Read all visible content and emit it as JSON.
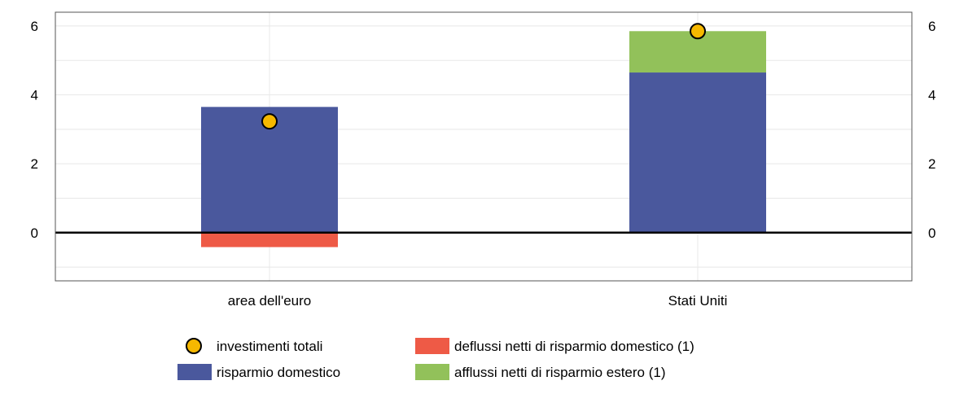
{
  "chart_data": {
    "type": "bar",
    "stacked": true,
    "categories": [
      "area dell'euro",
      "Stati Uniti"
    ],
    "series": [
      {
        "name": "risparmio domestico",
        "kind": "bar",
        "color": "#4a589d",
        "values": [
          3.65,
          4.65
        ]
      },
      {
        "name": "deflussi netti di risparmio domestico (1)",
        "kind": "bar",
        "color": "#ee5a46",
        "values": [
          -0.42,
          0
        ]
      },
      {
        "name": "afflussi netti di risparmio estero (1)",
        "kind": "bar",
        "color": "#92c15a",
        "values": [
          0,
          1.2
        ]
      },
      {
        "name": "investimenti totali",
        "kind": "marker",
        "color": "#f6b800",
        "values": [
          3.23,
          5.85
        ]
      }
    ],
    "ylim": [
      -1.4,
      6.4
    ],
    "yticks": [
      "0",
      "2",
      "4",
      "6"
    ],
    "grid": true,
    "secondary_y_axis": true,
    "legend_position": "bottom"
  }
}
